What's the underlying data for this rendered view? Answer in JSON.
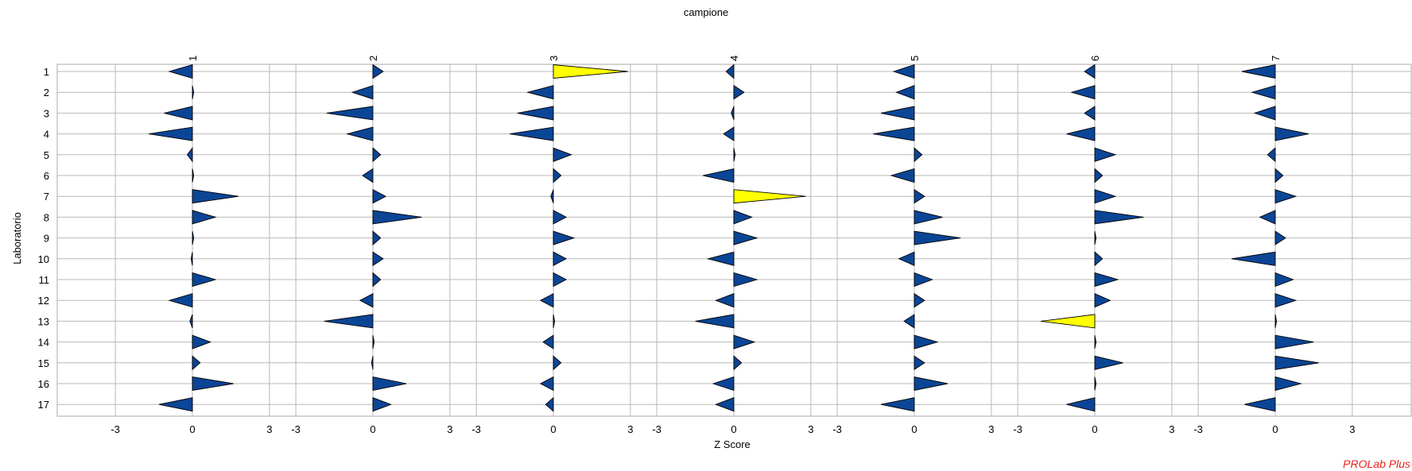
{
  "chart_data": {
    "type": "bar",
    "title": "campione",
    "xlabel": "Z Score",
    "ylabel": "Laboratorio",
    "panels": [
      "1",
      "2",
      "3",
      "4",
      "5",
      "6",
      "7"
    ],
    "categories": [
      "1",
      "2",
      "3",
      "4",
      "5",
      "6",
      "7",
      "8",
      "9",
      "10",
      "11",
      "12",
      "13",
      "14",
      "15",
      "16",
      "17"
    ],
    "xlim": [
      -4,
      4
    ],
    "x_tick_labels": [
      "-3",
      "0",
      "3"
    ],
    "grid": true,
    "highlight_threshold": 2,
    "series": [
      {
        "values": [
          -0.9,
          0.05,
          -1.1,
          -1.7,
          -0.2,
          0.05,
          1.8,
          0.9,
          0.05,
          -0.05,
          0.9,
          -0.9,
          -0.1,
          0.7,
          0.3,
          1.6,
          -1.3
        ]
      },
      {
        "values": [
          0.4,
          -0.8,
          -1.8,
          -1.0,
          0.3,
          -0.4,
          0.5,
          1.9,
          0.3,
          0.4,
          0.3,
          -0.5,
          -1.9,
          0.05,
          -0.05,
          1.3,
          0.7
        ]
      },
      {
        "values": [
          2.9,
          -1.0,
          -1.4,
          -1.7,
          0.7,
          0.3,
          -0.1,
          0.5,
          0.8,
          0.5,
          0.5,
          -0.5,
          0.05,
          -0.4,
          0.3,
          -0.5,
          -0.3
        ]
      },
      {
        "values": [
          -0.3,
          0.4,
          -0.1,
          -0.4,
          0.05,
          -1.2,
          2.8,
          0.7,
          0.9,
          -1.0,
          0.9,
          -0.7,
          -1.5,
          0.8,
          0.3,
          -0.8,
          -0.7
        ]
      },
      {
        "values": [
          -0.8,
          -0.7,
          -1.3,
          -1.6,
          0.3,
          -0.9,
          0.4,
          1.1,
          1.8,
          -0.6,
          0.7,
          0.4,
          -0.4,
          0.9,
          0.4,
          1.3,
          -1.3
        ]
      },
      {
        "values": [
          -0.4,
          -0.9,
          -0.4,
          -1.1,
          0.8,
          0.3,
          0.8,
          1.9,
          0.05,
          0.3,
          0.9,
          0.6,
          -2.1,
          0.05,
          1.1,
          0.05,
          -1.1
        ]
      },
      {
        "values": [
          -1.3,
          -0.9,
          -0.8,
          1.3,
          -0.3,
          0.3,
          0.8,
          -0.6,
          0.4,
          -1.7,
          0.7,
          0.8,
          0.05,
          1.5,
          1.7,
          1.0,
          -1.2
        ]
      }
    ]
  },
  "footer": {
    "brand": "PROLab Plus"
  },
  "colors": {
    "mark": "#0b4596",
    "mark_highlight": "#ffff00",
    "grid": "#b8b8b8",
    "brand": "#e8241c"
  }
}
